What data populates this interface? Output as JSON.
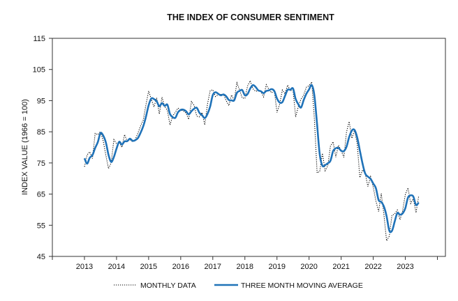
{
  "chart_data": {
    "type": "line",
    "title": "THE INDEX OF CONSUMER SENTIMENT",
    "xlabel": "",
    "ylabel": "INDEX VALUE (1966 = 100)",
    "xlim": [
      2012,
      2024.25
    ],
    "ylim": [
      45,
      115
    ],
    "yticks": [
      45,
      55,
      65,
      75,
      85,
      95,
      105,
      115
    ],
    "xtick_labels": [
      "2013",
      "2014",
      "2015",
      "2016",
      "2017",
      "2018",
      "2019",
      "2020",
      "2021",
      "2022",
      "2023"
    ],
    "xticks": [
      2012,
      2013,
      2014,
      2015,
      2016,
      2017,
      2018,
      2019,
      2020,
      2021,
      2022,
      2023,
      2024
    ],
    "grid": false,
    "legend_position": "bottom",
    "start": "2013-01",
    "frequency": "monthly",
    "colors": {
      "monthly": "#000000",
      "average": "#1f72b8"
    },
    "series": [
      {
        "name": "MONTHLY DATA",
        "style": "dotted",
        "values": [
          73.8,
          77.6,
          78.6,
          76.4,
          84.5,
          84.1,
          85.1,
          82.1,
          77.5,
          73.2,
          75.1,
          82.5,
          81.2,
          81.6,
          80.0,
          84.1,
          81.9,
          82.5,
          81.8,
          82.5,
          84.6,
          86.9,
          88.8,
          93.6,
          98.1,
          95.4,
          93.0,
          95.9,
          90.7,
          96.1,
          93.1,
          91.9,
          87.2,
          90.0,
          91.3,
          92.6,
          92.0,
          91.7,
          91.0,
          89.0,
          94.7,
          93.5,
          90.0,
          89.8,
          91.2,
          87.2,
          93.8,
          98.2,
          98.5,
          96.3,
          96.9,
          97.0,
          97.1,
          95.0,
          93.4,
          96.8,
          95.1,
          100.7,
          98.5,
          95.9,
          95.7,
          99.7,
          101.4,
          98.8,
          98.0,
          98.2,
          97.9,
          96.2,
          100.1,
          98.6,
          97.5,
          98.3,
          91.2,
          93.8,
          98.4,
          97.2,
          100.0,
          98.2,
          98.4,
          89.8,
          93.2,
          95.5,
          96.8,
          99.3,
          99.8,
          101.0,
          89.1,
          71.8,
          72.3,
          78.1,
          72.5,
          74.1,
          80.4,
          81.8,
          76.9,
          80.7,
          79.0,
          76.8,
          84.9,
          88.3,
          82.9,
          85.5,
          81.2,
          70.3,
          72.8,
          71.7,
          67.4,
          70.6,
          67.2,
          62.8,
          59.4,
          65.2,
          58.4,
          50.0,
          51.5,
          58.2,
          58.6,
          59.9,
          56.8,
          59.7,
          64.9,
          67.0,
          62.0,
          63.5,
          59.0,
          64.4
        ]
      },
      {
        "name": "THREE MONTH MOVING AVERAGE",
        "style": "solid",
        "values": [
          76.5,
          74.8,
          76.7,
          77.5,
          79.8,
          81.7,
          84.6,
          83.8,
          81.6,
          77.6,
          75.3,
          76.9,
          79.6,
          81.8,
          80.9,
          81.9,
          82.0,
          82.8,
          82.1,
          82.3,
          83.0,
          84.7,
          86.8,
          89.8,
          93.5,
          95.7,
          95.5,
          94.8,
          93.2,
          94.2,
          93.3,
          93.7,
          90.7,
          89.7,
          89.5,
          91.3,
          92.0,
          92.1,
          91.6,
          90.6,
          91.6,
          92.4,
          92.7,
          91.1,
          90.3,
          89.4,
          90.7,
          93.1,
          96.8,
          97.7,
          97.2,
          96.7,
          97.0,
          96.4,
          95.2,
          95.1,
          95.1,
          97.5,
          98.1,
          98.4,
          96.7,
          97.1,
          98.9,
          100.0,
          99.4,
          98.3,
          98.0,
          97.4,
          98.1,
          98.3,
          98.7,
          98.1,
          95.7,
          94.4,
          94.5,
          96.5,
          98.5,
          98.5,
          98.9,
          95.5,
          93.8,
          92.8,
          95.2,
          97.2,
          98.6,
          100.0,
          96.6,
          87.3,
          77.7,
          74.1,
          74.3,
          74.9,
          75.7,
          78.8,
          79.7,
          79.8,
          78.9,
          78.8,
          80.2,
          83.3,
          85.4,
          85.6,
          83.2,
          79.0,
          74.8,
          71.6,
          70.6,
          69.9,
          68.4,
          66.9,
          63.1,
          62.5,
          61.0,
          57.9,
          53.3,
          53.2,
          56.1,
          58.9,
          58.4,
          58.8,
          60.5,
          63.9,
          64.6,
          64.2,
          61.5,
          62.3
        ]
      }
    ]
  }
}
